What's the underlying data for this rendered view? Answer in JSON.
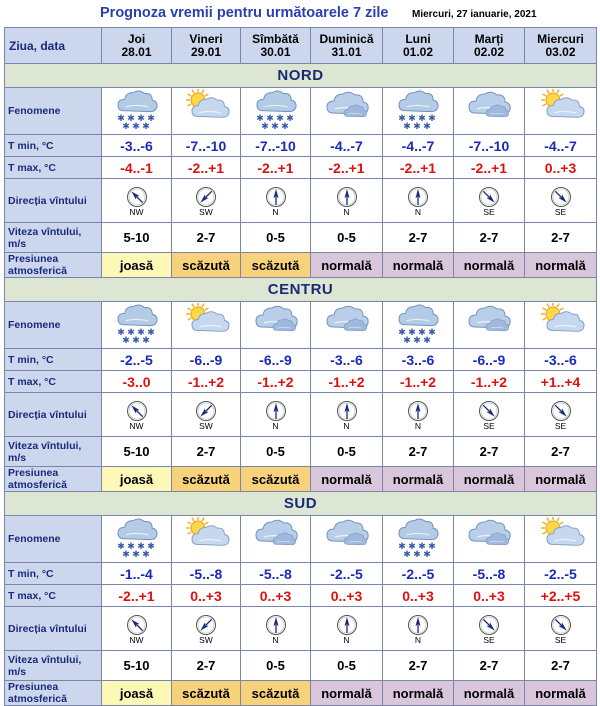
{
  "header": {
    "title": "Prognoza vremii pentru următoarele 7 zile",
    "date": "Miercuri, 27 ianuarie, 2021"
  },
  "corner_label": "Ziua, data",
  "days": [
    {
      "name": "Joi",
      "date": "28.01"
    },
    {
      "name": "Vineri",
      "date": "29.01"
    },
    {
      "name": "Sîmbătă",
      "date": "30.01"
    },
    {
      "name": "Duminică",
      "date": "31.01"
    },
    {
      "name": "Luni",
      "date": "01.02"
    },
    {
      "name": "Marți",
      "date": "02.02"
    },
    {
      "name": "Miercuri",
      "date": "03.02"
    }
  ],
  "row_labels": {
    "phenomena": "Fenomene",
    "tmin": "T min, °C",
    "tmax": "T max, °C",
    "wind_dir": "Direcția vîntului",
    "wind_speed": "Viteza vîntului, m/s",
    "pressure": "Presiunea atmosferică"
  },
  "regions": [
    {
      "name": "NORD",
      "weather_icons": [
        "cloud-snow-icon",
        "sun-cloud-icon",
        "cloud-snow-icon",
        "cloud-icon",
        "cloud-snow-icon",
        "cloud-icon",
        "sun-cloud-icon"
      ],
      "tmin": [
        "-3..-6",
        "-7..-10",
        "-7..-10",
        "-4..-7",
        "-4..-7",
        "-7..-10",
        "-4..-7"
      ],
      "tmax": [
        "-4..-1",
        "-2..+1",
        "-2..+1",
        "-2..+1",
        "-2..+1",
        "-2..+1",
        "0..+3"
      ],
      "wind_dir": [
        "NW",
        "SW",
        "N",
        "N",
        "N",
        "SE",
        "SE"
      ],
      "wind_speed": [
        "5-10",
        "2-7",
        "0-5",
        "0-5",
        "2-7",
        "2-7",
        "2-7"
      ],
      "pressure": [
        "joasă",
        "scăzută",
        "scăzută",
        "normală",
        "normală",
        "normală",
        "normală"
      ]
    },
    {
      "name": "CENTRU",
      "weather_icons": [
        "cloud-snow-icon",
        "sun-cloud-icon",
        "cloud-icon",
        "cloud-icon",
        "cloud-snow-icon",
        "cloud-icon",
        "sun-cloud-icon"
      ],
      "tmin": [
        "-2..-5",
        "-6..-9",
        "-6..-9",
        "-3..-6",
        "-3..-6",
        "-6..-9",
        "-3..-6"
      ],
      "tmax": [
        "-3..0",
        "-1..+2",
        "-1..+2",
        "-1..+2",
        "-1..+2",
        "-1..+2",
        "+1..+4"
      ],
      "wind_dir": [
        "NW",
        "SW",
        "N",
        "N",
        "N",
        "SE",
        "SE"
      ],
      "wind_speed": [
        "5-10",
        "2-7",
        "0-5",
        "0-5",
        "2-7",
        "2-7",
        "2-7"
      ],
      "pressure": [
        "joasă",
        "scăzută",
        "scăzută",
        "normală",
        "normală",
        "normală",
        "normală"
      ]
    },
    {
      "name": "SUD",
      "weather_icons": [
        "cloud-snow-icon",
        "sun-cloud-icon",
        "cloud-icon",
        "cloud-icon",
        "cloud-snow-icon",
        "cloud-icon",
        "sun-cloud-icon"
      ],
      "tmin": [
        "-1..-4",
        "-5..-8",
        "-5..-8",
        "-2..-5",
        "-2..-5",
        "-5..-8",
        "-2..-5"
      ],
      "tmax": [
        "-2..+1",
        "0..+3",
        "0..+3",
        "0..+3",
        "0..+3",
        "0..+3",
        "+2..+5"
      ],
      "wind_dir": [
        "NW",
        "SW",
        "N",
        "N",
        "N",
        "SE",
        "SE"
      ],
      "wind_speed": [
        "5-10",
        "2-7",
        "0-5",
        "0-5",
        "2-7",
        "2-7",
        "2-7"
      ],
      "pressure": [
        "joasă",
        "scăzută",
        "scăzută",
        "normală",
        "normală",
        "normală",
        "normală"
      ]
    }
  ]
}
